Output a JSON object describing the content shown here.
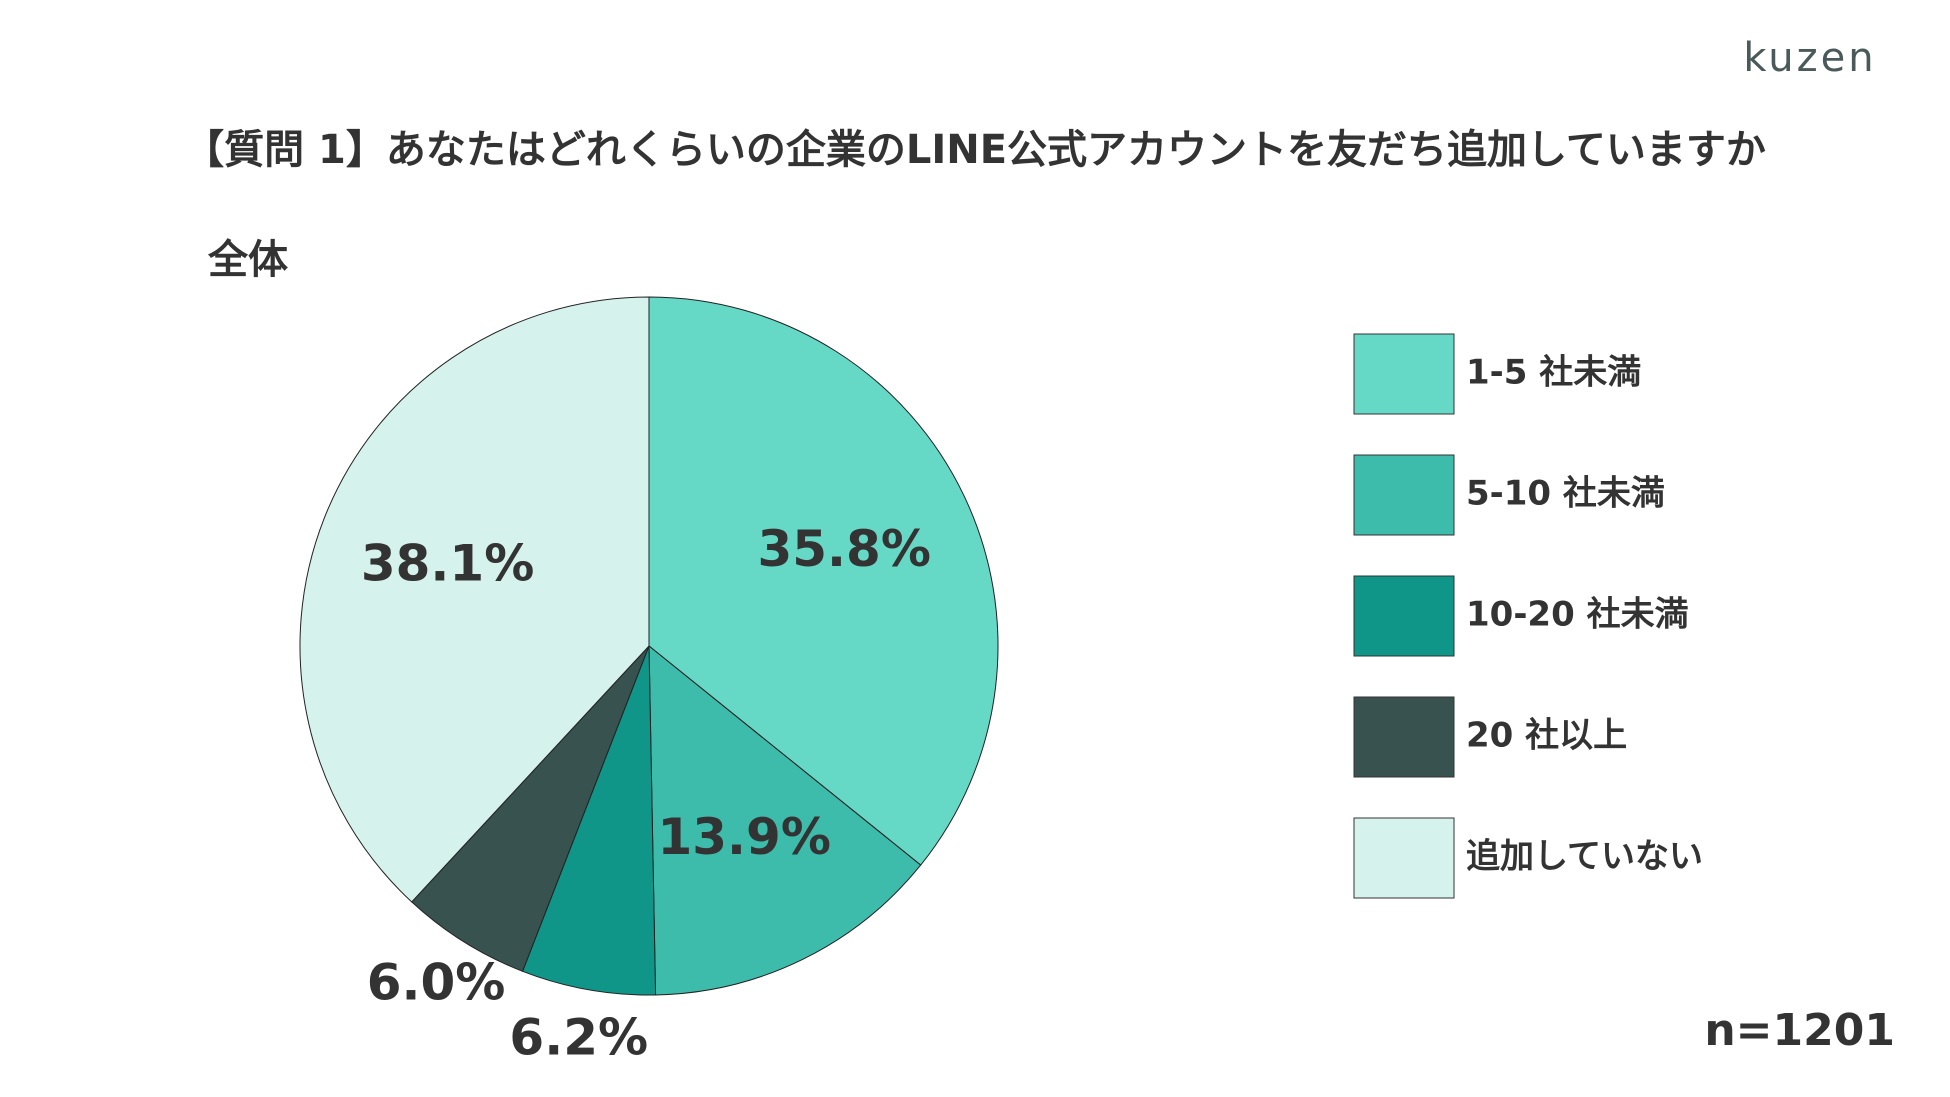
{
  "brand": "kuzen",
  "chart_data": {
    "type": "pie",
    "title": "【質問 1】あなたはどれくらいの企業のLINE公式アカウントを友だち追加していますか",
    "subtitle": "全体",
    "categories": [
      "1-5 社未満",
      "5-10 社未満",
      "10-20 社未満",
      "20 社以上",
      "追加していない"
    ],
    "values": [
      35.8,
      13.9,
      6.2,
      6.0,
      38.1
    ],
    "value_labels": [
      "35.8%",
      "13.9%",
      "6.2%",
      "6.0%",
      "38.1%"
    ],
    "colors": [
      "#66d8c6",
      "#3dbbab",
      "#0f9688",
      "#37524f",
      "#d5f2ec"
    ],
    "legend": "right",
    "note": "n=1201"
  }
}
